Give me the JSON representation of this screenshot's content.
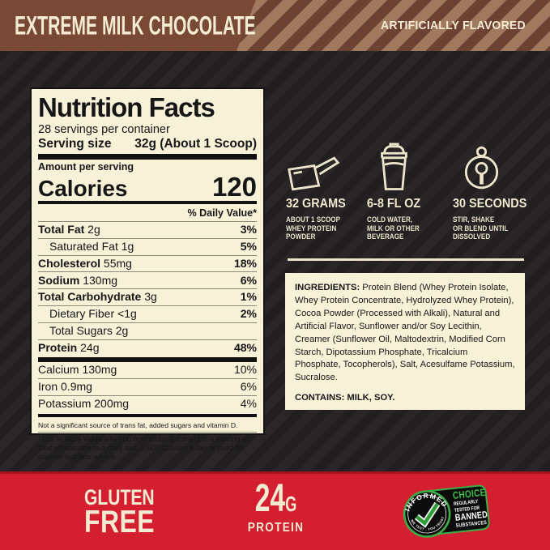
{
  "banner": {
    "flavor": "EXTREME MILK CHOCOLATE",
    "flavored_note": "ARTIFICIALLY FLAVORED"
  },
  "nutrition": {
    "title": "Nutrition Facts",
    "servings_per_container": "28 servings per container",
    "serving_size_label": "Serving size",
    "serving_size_value": "32g (About 1 Scoop)",
    "amount_per_serving": "Amount per serving",
    "calories_label": "Calories",
    "calories_value": "120",
    "daily_value_header": "% Daily Value*",
    "rows": [
      {
        "label": "Total Fat",
        "amount": "2g",
        "dv": "3%",
        "bold": true,
        "indent": false
      },
      {
        "label": "Saturated Fat",
        "amount": "1g",
        "dv": "5%",
        "bold": false,
        "indent": true
      },
      {
        "label": "Cholesterol",
        "amount": "55mg",
        "dv": "18%",
        "bold": true,
        "indent": false
      },
      {
        "label": "Sodium",
        "amount": "130mg",
        "dv": "6%",
        "bold": true,
        "indent": false
      },
      {
        "label": "Total Carbohydrate",
        "amount": "3g",
        "dv": "1%",
        "bold": true,
        "indent": false
      },
      {
        "label": "Dietary Fiber",
        "amount": "<1g",
        "dv": "2%",
        "bold": false,
        "indent": true
      },
      {
        "label": "Total Sugars",
        "amount": "2g",
        "dv": "",
        "bold": false,
        "indent": true
      },
      {
        "label": "Protein",
        "amount": "24g",
        "dv": "48%",
        "bold": true,
        "indent": false
      }
    ],
    "minerals": [
      {
        "label": "Calcium 130mg",
        "dv": "10%"
      },
      {
        "label": "Iron 0.9mg",
        "dv": "6%"
      },
      {
        "label": "Potassium 200mg",
        "dv": "4%"
      }
    ],
    "note": "Not a significant source of trans fat, added sugars and vitamin D.",
    "footnote": "*The % Daily Value tells you how much a nutrient in a serving of food contributes to a daily diet. 2,000 calories a day is used for general nutrition advice."
  },
  "directions": [
    {
      "icon": "scoop-icon",
      "title": "32 GRAMS",
      "lines": [
        "ABOUT 1 SCOOP",
        "WHEY PROTEIN",
        "POWDER"
      ]
    },
    {
      "icon": "shaker-bottle-icon",
      "title": "6-8 FL OZ",
      "lines": [
        "COLD WATER,",
        "MILK OR OTHER",
        "BEVERAGE"
      ]
    },
    {
      "icon": "stopwatch-icon",
      "title": "30 SECONDS",
      "lines": [
        "STIR, SHAKE",
        "OR BLEND UNTIL",
        "DISSOLVED"
      ]
    }
  ],
  "ingredients": {
    "label": "INGREDIENTS:",
    "text": "Protein Blend (Whey Protein Isolate, Whey Protein Concentrate, Hydrolyzed Whey Protein), Cocoa Powder (Processed with Alkali), Natural and Artificial Flavor, Sunflower and/or Soy Lecithin, Creamer (Sunflower Oil, Maltodextrin, Modified Corn Starch, Dipotassium Phosphate, Tricalcium Phosphate, Tocopherols), Salt, Acesulfame Potassium, Sucralose.",
    "contains": "CONTAINS: MILK, SOY."
  },
  "footer": {
    "gluten_line1": "GLUTEN",
    "gluten_line2": "FREE",
    "protein_value": "24",
    "protein_unit": "G",
    "protein_label": "PROTEIN",
    "badge": {
      "brand_arc_top": "INFORMED",
      "brand_arc_bottom": "WE TEST . YOU TRUST",
      "choice": "CHOICE",
      "line1": "REGULARLY",
      "line2": "TESTED FOR",
      "line3": "BANNED",
      "line4": "SUBSTANCES"
    }
  },
  "colors": {
    "banner_brown": "#7a4936",
    "banner_stripe_light": "#a0795f",
    "banner_stripe_dark": "#6e4233",
    "background_dark": "#262223",
    "cream_text": "#f3ecd3",
    "label_background": "#f7f1d8",
    "footer_red": "#d41f30",
    "badge_green": "#3fae47",
    "ink_black": "#121212"
  }
}
